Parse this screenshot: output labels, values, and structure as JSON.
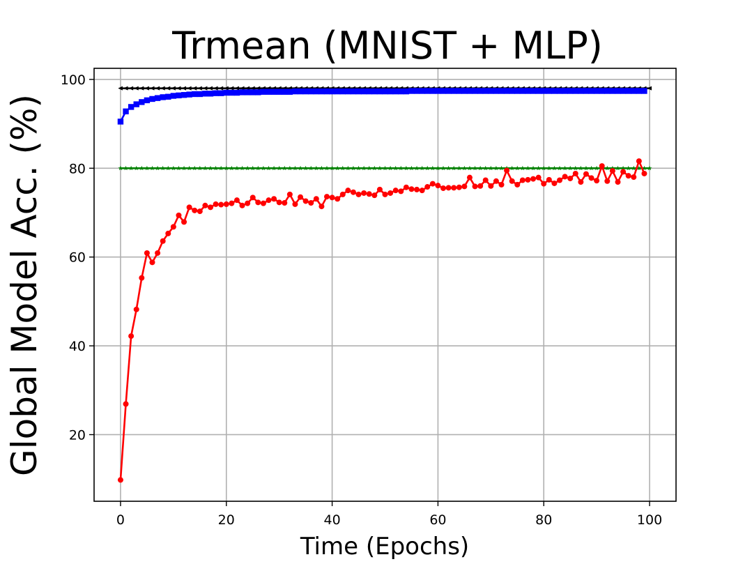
{
  "chart_data": {
    "type": "line",
    "title": "Trmean (MNIST + MLP)",
    "xlabel": "Time (Epochs)",
    "ylabel": "Global Model Acc. (%)",
    "xlim": [
      -5,
      105
    ],
    "ylim": [
      5,
      102.5
    ],
    "xticks": [
      0,
      20,
      40,
      60,
      80,
      100
    ],
    "yticks": [
      20,
      40,
      60,
      80,
      100
    ],
    "grid": true,
    "legend": "none",
    "series": [
      {
        "color": "#000000",
        "marker": "triangle-left",
        "values_x": [
          0,
          100
        ],
        "constant_y": 98.0
      },
      {
        "color": "#0000ff",
        "marker": "square",
        "x": [
          0,
          1,
          2,
          3,
          4,
          5,
          6,
          7,
          8,
          9,
          10,
          11,
          12,
          13,
          14,
          15,
          16,
          17,
          18,
          19,
          20,
          21,
          22,
          23,
          24,
          25,
          26,
          27,
          28,
          29,
          30,
          31,
          32,
          33,
          34,
          35,
          36,
          37,
          38,
          39,
          40,
          41,
          42,
          43,
          44,
          45,
          46,
          47,
          48,
          49,
          50,
          51,
          52,
          53,
          54,
          55,
          56,
          57,
          58,
          59,
          60,
          61,
          62,
          63,
          64,
          65,
          66,
          67,
          68,
          69,
          70,
          71,
          72,
          73,
          74,
          75,
          76,
          77,
          78,
          79,
          80,
          81,
          82,
          83,
          84,
          85,
          86,
          87,
          88,
          89,
          90,
          91,
          92,
          93,
          94,
          95,
          96,
          97,
          98,
          99
        ],
        "y": [
          90.5,
          92.8,
          93.8,
          94.4,
          94.9,
          95.3,
          95.6,
          95.8,
          96.0,
          96.1,
          96.3,
          96.4,
          96.5,
          96.6,
          96.7,
          96.7,
          96.8,
          96.8,
          96.9,
          96.9,
          97.0,
          97.0,
          97.0,
          97.1,
          97.1,
          97.1,
          97.1,
          97.2,
          97.2,
          97.2,
          97.2,
          97.2,
          97.2,
          97.3,
          97.3,
          97.3,
          97.3,
          97.3,
          97.3,
          97.3,
          97.3,
          97.3,
          97.3,
          97.3,
          97.3,
          97.3,
          97.3,
          97.3,
          97.3,
          97.3,
          97.3,
          97.3,
          97.3,
          97.3,
          97.3,
          97.4,
          97.4,
          97.4,
          97.4,
          97.4,
          97.4,
          97.4,
          97.4,
          97.4,
          97.4,
          97.4,
          97.4,
          97.4,
          97.4,
          97.4,
          97.4,
          97.4,
          97.4,
          97.4,
          97.4,
          97.4,
          97.4,
          97.4,
          97.4,
          97.4,
          97.4,
          97.4,
          97.4,
          97.4,
          97.4,
          97.4,
          97.4,
          97.4,
          97.4,
          97.4,
          97.4,
          97.4,
          97.4,
          97.4,
          97.4,
          97.4,
          97.4,
          97.4,
          97.4,
          97.4
        ]
      },
      {
        "color": "#008000",
        "marker": "star",
        "values_x": [
          0,
          100
        ],
        "constant_y": 80.0
      },
      {
        "color": "#ff0000",
        "marker": "circle",
        "x": [
          0,
          1,
          2,
          3,
          4,
          5,
          6,
          7,
          8,
          9,
          10,
          11,
          12,
          13,
          14,
          15,
          16,
          17,
          18,
          19,
          20,
          21,
          22,
          23,
          24,
          25,
          26,
          27,
          28,
          29,
          30,
          31,
          32,
          33,
          34,
          35,
          36,
          37,
          38,
          39,
          40,
          41,
          42,
          43,
          44,
          45,
          46,
          47,
          48,
          49,
          50,
          51,
          52,
          53,
          54,
          55,
          56,
          57,
          58,
          59,
          60,
          61,
          62,
          63,
          64,
          65,
          66,
          67,
          68,
          69,
          70,
          71,
          72,
          73,
          74,
          75,
          76,
          77,
          78,
          79,
          80,
          81,
          82,
          83,
          84,
          85,
          86,
          87,
          88,
          89,
          90,
          91,
          92,
          93,
          94,
          95,
          96,
          97,
          98,
          99
        ],
        "y": [
          9.8,
          26.9,
          42.2,
          48.2,
          55.3,
          60.9,
          58.8,
          60.9,
          63.6,
          65.3,
          66.8,
          69.4,
          67.9,
          71.2,
          70.5,
          70.3,
          71.6,
          71.2,
          71.9,
          71.8,
          71.9,
          72.1,
          72.8,
          71.6,
          72.1,
          73.4,
          72.3,
          72.1,
          72.8,
          73.1,
          72.3,
          72.2,
          74.1,
          71.9,
          73.5,
          72.6,
          72.2,
          73.1,
          71.4,
          73.6,
          73.4,
          73.1,
          74.1,
          75.0,
          74.6,
          74.1,
          74.4,
          74.2,
          73.9,
          75.2,
          74.1,
          74.4,
          75.0,
          74.8,
          75.7,
          75.3,
          75.2,
          75.0,
          75.8,
          76.5,
          76.1,
          75.5,
          75.6,
          75.6,
          75.7,
          75.9,
          77.9,
          75.9,
          76.0,
          77.3,
          76.0,
          77.1,
          76.3,
          79.5,
          77.1,
          76.3,
          77.3,
          77.4,
          77.6,
          77.9,
          76.5,
          77.4,
          76.6,
          77.3,
          78.1,
          77.7,
          78.8,
          76.9,
          78.7,
          77.8,
          77.2,
          80.5,
          77.1,
          79.4,
          76.9,
          79.2,
          78.3,
          78.0,
          81.6,
          78.8
        ]
      }
    ]
  }
}
